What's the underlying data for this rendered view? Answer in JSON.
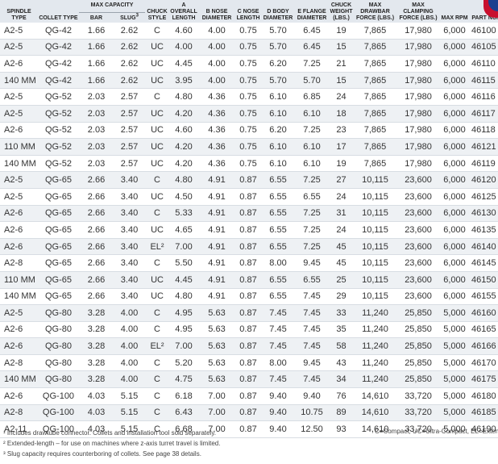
{
  "header": {
    "spindle_type": "Spindle Type",
    "collet_type": "Collet Type",
    "max_capacity": "Max Capacity",
    "bar": "Bar",
    "slug": "Slug",
    "chuck_style": "Chuck Style",
    "a_overall_length": "A Overall Length",
    "b_nose_diameter": "B Nose Diameter",
    "c_nose_length": "C Nose Length",
    "d_body_diameter": "D Body Diameter",
    "e_flange_diameter": "E Flange Diameter",
    "chuck_weight": "Chuck Weight (lbs.)",
    "max_drawbar_force": "Max Drawbar Force (lbs.)",
    "max_clamping_force": "Max Clamping Force (lbs.)",
    "max_rpm": "Max RPM",
    "part_number": "Part Number"
  },
  "rows": [
    [
      "A2-5",
      "QG-42",
      "1.66",
      "2.62",
      "C",
      "4.60",
      "4.00",
      "0.75",
      "5.70",
      "6.45",
      "19",
      "7,865",
      "17,980",
      "6,000",
      "46100"
    ],
    [
      "A2-5",
      "QG-42",
      "1.66",
      "2.62",
      "UC",
      "4.00",
      "4.00",
      "0.75",
      "5.70",
      "6.45",
      "15",
      "7,865",
      "17,980",
      "6,000",
      "46105"
    ],
    [
      "A2-6",
      "QG-42",
      "1.66",
      "2.62",
      "UC",
      "4.45",
      "4.00",
      "0.75",
      "6.20",
      "7.25",
      "21",
      "7,865",
      "17,980",
      "6,000",
      "46110"
    ],
    [
      "140 MM",
      "QG-42",
      "1.66",
      "2.62",
      "UC",
      "3.95",
      "4.00",
      "0.75",
      "5.70",
      "5.70",
      "15",
      "7,865",
      "17,980",
      "6,000",
      "46115"
    ],
    [
      "A2-5",
      "QG-52",
      "2.03",
      "2.57",
      "C",
      "4.80",
      "4.36",
      "0.75",
      "6.10",
      "6.85",
      "24",
      "7,865",
      "17,980",
      "6,000",
      "46116"
    ],
    [
      "A2-5",
      "QG-52",
      "2.03",
      "2.57",
      "UC",
      "4.20",
      "4.36",
      "0.75",
      "6.10",
      "6.10",
      "18",
      "7,865",
      "17,980",
      "6,000",
      "46117"
    ],
    [
      "A2-6",
      "QG-52",
      "2.03",
      "2.57",
      "UC",
      "4.60",
      "4.36",
      "0.75",
      "6.20",
      "7.25",
      "23",
      "7,865",
      "17,980",
      "6,000",
      "46118"
    ],
    [
      "110 MM",
      "QG-52",
      "2.03",
      "2.57",
      "UC",
      "4.20",
      "4.36",
      "0.75",
      "6.10",
      "6.10",
      "17",
      "7,865",
      "17,980",
      "6,000",
      "46121"
    ],
    [
      "140 MM",
      "QG-52",
      "2.03",
      "2.57",
      "UC",
      "4.20",
      "4.36",
      "0.75",
      "6.10",
      "6.10",
      "19",
      "7,865",
      "17,980",
      "6,000",
      "46119"
    ],
    [
      "A2-5",
      "QG-65",
      "2.66",
      "3.40",
      "C",
      "4.80",
      "4.91",
      "0.87",
      "6.55",
      "7.25",
      "27",
      "10,115",
      "23,600",
      "6,000",
      "46120"
    ],
    [
      "A2-5",
      "QG-65",
      "2.66",
      "3.40",
      "UC",
      "4.50",
      "4.91",
      "0.87",
      "6.55",
      "6.55",
      "24",
      "10,115",
      "23,600",
      "6,000",
      "46125"
    ],
    [
      "A2-6",
      "QG-65",
      "2.66",
      "3.40",
      "C",
      "5.33",
      "4.91",
      "0.87",
      "6.55",
      "7.25",
      "31",
      "10,115",
      "23,600",
      "6,000",
      "46130"
    ],
    [
      "A2-6",
      "QG-65",
      "2.66",
      "3.40",
      "UC",
      "4.65",
      "4.91",
      "0.87",
      "6.55",
      "7.25",
      "24",
      "10,115",
      "23,600",
      "6,000",
      "46135"
    ],
    [
      "A2-6",
      "QG-65",
      "2.66",
      "3.40",
      "EL²",
      "7.00",
      "4.91",
      "0.87",
      "6.55",
      "7.25",
      "45",
      "10,115",
      "23,600",
      "6,000",
      "46140"
    ],
    [
      "A2-8",
      "QG-65",
      "2.66",
      "3.40",
      "C",
      "5.50",
      "4.91",
      "0.87",
      "8.00",
      "9.45",
      "45",
      "10,115",
      "23,600",
      "6,000",
      "46145"
    ],
    [
      "110 MM",
      "QG-65",
      "2.66",
      "3.40",
      "UC",
      "4.45",
      "4.91",
      "0.87",
      "6.55",
      "6.55",
      "25",
      "10,115",
      "23,600",
      "6,000",
      "46150"
    ],
    [
      "140 MM",
      "QG-65",
      "2.66",
      "3.40",
      "UC",
      "4.80",
      "4.91",
      "0.87",
      "6.55",
      "7.45",
      "29",
      "10,115",
      "23,600",
      "6,000",
      "46155"
    ],
    [
      "A2-5",
      "QG-80",
      "3.28",
      "4.00",
      "C",
      "4.95",
      "5.63",
      "0.87",
      "7.45",
      "7.45",
      "33",
      "11,240",
      "25,850",
      "5,000",
      "46160"
    ],
    [
      "A2-6",
      "QG-80",
      "3.28",
      "4.00",
      "C",
      "4.95",
      "5.63",
      "0.87",
      "7.45",
      "7.45",
      "35",
      "11,240",
      "25,850",
      "5,000",
      "46165"
    ],
    [
      "A2-6",
      "QG-80",
      "3.28",
      "4.00",
      "EL²",
      "7.00",
      "5.63",
      "0.87",
      "7.45",
      "7.45",
      "58",
      "11,240",
      "25,850",
      "5,000",
      "46166"
    ],
    [
      "A2-8",
      "QG-80",
      "3.28",
      "4.00",
      "C",
      "5.20",
      "5.63",
      "0.87",
      "8.00",
      "9.45",
      "43",
      "11,240",
      "25,850",
      "5,000",
      "46170"
    ],
    [
      "140 MM",
      "QG-80",
      "3.28",
      "4.00",
      "C",
      "4.75",
      "5.63",
      "0.87",
      "7.45",
      "7.45",
      "34",
      "11,240",
      "25,850",
      "5,000",
      "46175"
    ],
    [
      "A2-6",
      "QG-100",
      "4.03",
      "5.15",
      "C",
      "6.18",
      "7.00",
      "0.87",
      "9.40",
      "9.40",
      "76",
      "14,610",
      "33,720",
      "5,000",
      "46180"
    ],
    [
      "A2-8",
      "QG-100",
      "4.03",
      "5.15",
      "C",
      "6.43",
      "7.00",
      "0.87",
      "9.40",
      "10.75",
      "89",
      "14,610",
      "33,720",
      "5,000",
      "46185"
    ],
    [
      "A2-11",
      "QG-100",
      "4.03",
      "5.15",
      "C",
      "6.68",
      "7.00",
      "0.87",
      "9.40",
      "12.50",
      "93",
      "14,610",
      "33,720",
      "5,000",
      "46190"
    ]
  ],
  "footnotes": [
    "¹ Includes drawtube connector. Collets and installation tool sold separately.",
    "² Extended-length – for use on machines where z-axis turret travel is limited.",
    "³ Slug capacity requires counterboring of collets. See page 38 details."
  ],
  "legend": "C=Compact, UC=Ultra-Compact, EL=Extended"
}
